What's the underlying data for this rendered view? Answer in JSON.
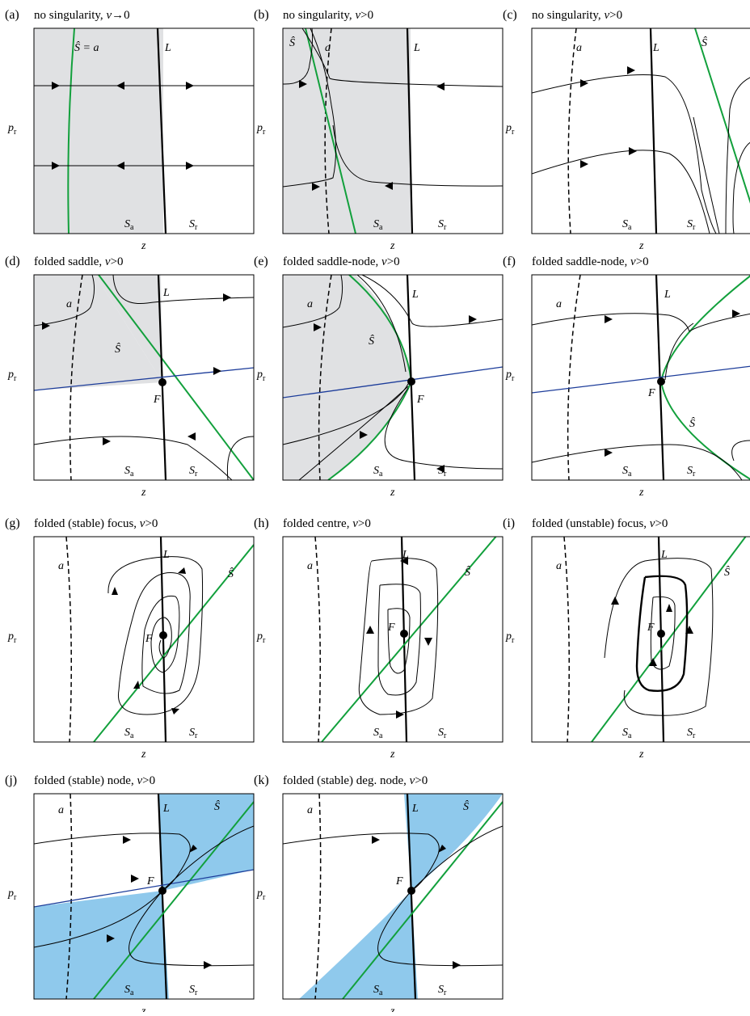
{
  "panels": [
    {
      "id": "a",
      "tag": "(a)",
      "title": "no singularity, ",
      "v": "v",
      "cond": "→0",
      "S_label": "Ŝ = a"
    },
    {
      "id": "b",
      "tag": "(b)",
      "title": "no singularity, ",
      "v": "v",
      "cond": ">0"
    },
    {
      "id": "c",
      "tag": "(c)",
      "title": "no singularity, ",
      "v": "v",
      "cond": ">0"
    },
    {
      "id": "d",
      "tag": "(d)",
      "title": "folded saddle, ",
      "v": "v",
      "cond": ">0"
    },
    {
      "id": "e",
      "tag": "(e)",
      "title": "folded saddle-node, ",
      "v": "v",
      "cond": ">0"
    },
    {
      "id": "f",
      "tag": "(f)",
      "title": "folded saddle-node, ",
      "v": "v",
      "cond": ">0"
    },
    {
      "id": "g",
      "tag": "(g)",
      "title": "folded (stable) focus, ",
      "v": "v",
      "cond": ">0"
    },
    {
      "id": "h",
      "tag": "(h)",
      "title": "folded centre, ",
      "v": "v",
      "cond": ">0"
    },
    {
      "id": "i",
      "tag": "(i)",
      "title": "folded (unstable) focus, ",
      "v": "v",
      "cond": ">0"
    },
    {
      "id": "j",
      "tag": "(j)",
      "title": "folded (stable) node, ",
      "v": "v",
      "cond": ">0"
    },
    {
      "id": "k",
      "tag": "(k)",
      "title": "folded (stable) deg. node, ",
      "v": "v",
      "cond": ">0"
    }
  ],
  "labels": {
    "a": "a",
    "L": "L",
    "S_hat": "Ŝ",
    "F": "F",
    "x_axis": "z",
    "y_axis": "p",
    "y_sub": "r",
    "S": "S",
    "S_a_sub": "a",
    "S_r_sub": "r"
  },
  "colors": {
    "critical_curve": "#12a03c",
    "strong_eigen": "#1c3c9a",
    "shade_grey": "#e0e1e3",
    "shade_blue": "#8fc9ec"
  }
}
